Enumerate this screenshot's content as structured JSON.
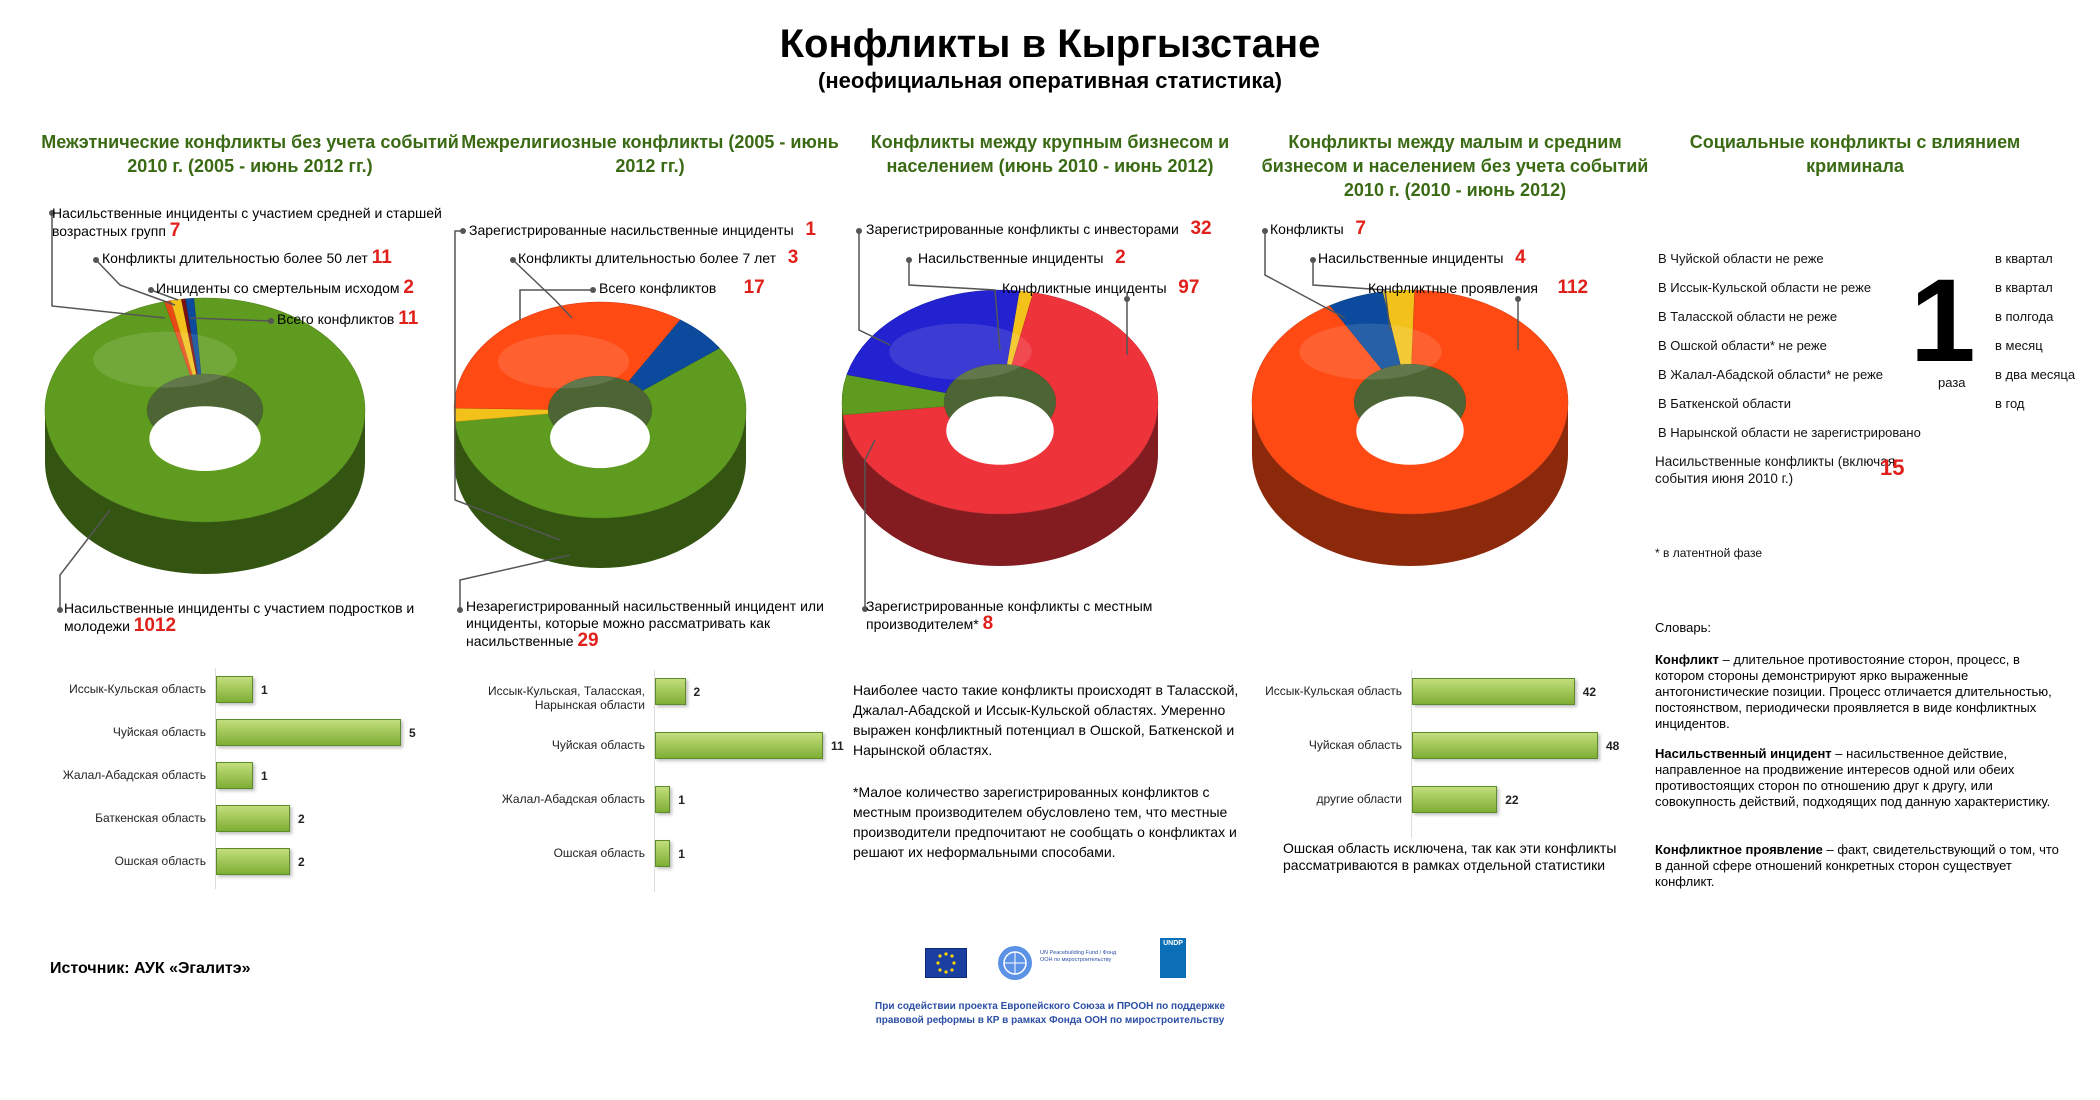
{
  "title": "Конфликты в Кыргызстане",
  "subtitle": "(неофициальная оперативная статистика)",
  "colors": {
    "green": "#5f9b1e",
    "red": "#ff4a14",
    "crimson": "#ef333a",
    "blue": "#0b4a9c",
    "royal": "#2222d0",
    "yellow": "#f2c21a",
    "header": "#3a6a14",
    "accent": "#e0201a"
  },
  "chart_data": [
    {
      "type": "pie",
      "title": "Межэтнические конфликты без учета событий 2010 г. (2005 - июнь 2012 гг.)",
      "slices": [
        {
          "label": "Насильственные инциденты с участием подростков и молодежи",
          "value": 1012,
          "color": "#5f9b1e"
        },
        {
          "label": "Насильственные инциденты с участием средней и старшей возрастных групп",
          "value": 7,
          "color": "#e84a16"
        },
        {
          "label": "Конфликты длительностью более 50 лет",
          "value": 11,
          "color": "#f2c21a"
        },
        {
          "label": "Инциденты со смертельным исходом",
          "value": 2,
          "color": "#7a1010"
        },
        {
          "label": "Всего конфликтов",
          "value": 11,
          "color": "#0b4a9c"
        }
      ],
      "annotations": [
        {
          "label": "Насильственные инциденты с участием средней и старшей возрастных групп",
          "value": "7"
        },
        {
          "label": "Конфликты длительностью более 50 лет",
          "value": "11"
        },
        {
          "label": "Инциденты со смертельным исходом",
          "value": "2"
        },
        {
          "label": "Всего конфликтов",
          "value": "11"
        },
        {
          "label": "Насильственные инциденты с участием подростков и молодежи",
          "value": "1012"
        }
      ],
      "bars": {
        "type": "bar",
        "categories": [
          "Иссык-Кульская область",
          "Чуйская область",
          "Жалал-Абадская область",
          "Баткенская область",
          "Ошская область"
        ],
        "values": [
          1,
          5,
          1,
          2,
          2
        ]
      }
    },
    {
      "type": "pie",
      "title": "Межрелигиозные конфликты (2005 - июнь 2012 гг.)",
      "slices": [
        {
          "label": "Незарегистрированный насильственный инцидент или инциденты, которые можно рассматривать как насильственные",
          "value": 29,
          "color": "#5f9b1e"
        },
        {
          "label": "Зарегистрированные насильственные инциденты",
          "value": 1,
          "color": "#f2c21a"
        },
        {
          "label": "Всего конфликтов",
          "value": 17,
          "color": "#ff4a14"
        },
        {
          "label": "Конфликты длительностью более 7 лет",
          "value": 3,
          "color": "#0b4a9c"
        }
      ],
      "annotations": [
        {
          "label": "Зарегистрированные насильственные инциденты",
          "value": "1"
        },
        {
          "label": "Конфликты длительностью более 7 лет",
          "value": "3"
        },
        {
          "label": "Всего конфликтов",
          "value": "17"
        },
        {
          "label": "Незарегистрированный насильственный инцидент или инциденты, которые можно рассматривать как насильственные",
          "value": "29"
        }
      ],
      "bars": {
        "type": "bar",
        "categories": [
          "Иссык-Кульская, Таласская, Нарынская области",
          "Чуйская область",
          "Жалал-Абадская область",
          "Ошская область"
        ],
        "values": [
          2,
          11,
          1,
          1
        ]
      }
    },
    {
      "type": "pie",
      "title": "Конфликты между крупным бизнесом и населением (июнь 2010 - июнь 2012)",
      "slices": [
        {
          "label": "Насильственные инциденты",
          "value": 2,
          "color": "#f2c21a"
        },
        {
          "label": "Конфликтные инциденты",
          "value": 97,
          "color": "#ef333a"
        },
        {
          "label": "Зарегистрированные конфликты с местным производителем*",
          "value": 8,
          "color": "#5f9b1e"
        },
        {
          "label": "Зарегистрированные конфликты с инвесторами",
          "value": 32,
          "color": "#2222d0"
        }
      ],
      "annotations": [
        {
          "label": "Зарегистрированные конфликты с инвесторами",
          "value": "32"
        },
        {
          "label": "Насильственные инциденты",
          "value": "2"
        },
        {
          "label": "Конфликтные инциденты",
          "value": "97"
        },
        {
          "label": "Зарегистрированные конфликты с местным производителем*",
          "value": "8"
        }
      ]
    },
    {
      "type": "pie",
      "title": "Конфликты между малым и средним бизнесом и населением без учета событий 2010 г. (2010 - июнь 2012)",
      "slices": [
        {
          "label": "Насильственные инциденты",
          "value": 4,
          "color": "#f2c21a"
        },
        {
          "label": "Конфликтные проявления",
          "value": 112,
          "color": "#ff4a14"
        },
        {
          "label": "Конфликты",
          "value": 7,
          "color": "#0b4a9c"
        }
      ],
      "annotations": [
        {
          "label": "Конфликты",
          "value": "7"
        },
        {
          "label": "Насильственные инциденты",
          "value": "4"
        },
        {
          "label": "Конфликтные проявления",
          "value": "112"
        }
      ],
      "bars": {
        "type": "bar",
        "categories": [
          "Иссык-Кульская область",
          "Чуйская область",
          "другие области"
        ],
        "values": [
          42,
          48,
          22
        ]
      }
    }
  ],
  "col3_text": {
    "p1": "Наиболее часто такие конфликты происходят в Таласской, Джалал-Абадской и Иссык-Кульской областях. Умеренно выражен конфликтный потенциал в Ошской, Баткенской и Нарынской областях.",
    "p2": "*Малое количество зарегистрированных конфликтов с местным производителем обусловлено тем, что местные производители предпочитают не сообщать о конфликтах и решают их неформальными способами."
  },
  "col4_note": "Ошская область исключена, так как эти конфликты рассматриваются в рамках отдельной статистики",
  "social": {
    "title": "Социальные конфликты с влиянием криминала",
    "rows": [
      {
        "region": "В Чуйской области не реже",
        "freq": "в квартал"
      },
      {
        "region": "В Иссык-Кульской области не реже",
        "freq": "в квартал"
      },
      {
        "region": "В Таласской области не реже",
        "freq": "в полгода"
      },
      {
        "region": "В Ошской области* не реже",
        "freq": "в месяц"
      },
      {
        "region": "В Жалал-Абадской области* не реже",
        "freq": "в два месяца"
      },
      {
        "region": "В Баткенской области",
        "freq": "в год"
      },
      {
        "region": "В Нарынской области не зарегистрировано",
        "freq": ""
      }
    ],
    "big_number": "1",
    "big_unit": "раза",
    "violent_label": "Насильственные конфликты (включая события июня 2010 г.)",
    "violent_value": "15",
    "footnote": "* в латентной фазе"
  },
  "glossary": {
    "heading": "Словарь:",
    "entries": [
      {
        "term": "Конфликт",
        "def": " – длительное противостояние сторон, процесс, в котором стороны демонстрируют ярко выраженные антогонистические позиции. Процесс отличается длительностью, постоянством, периодически проявляется в виде конфликтных инцидентов."
      },
      {
        "term": "Насильственный инцидент",
        "def": " – насильственное действие, направленное на продвижение интересов одной или обеих противостоящих сторон по отношению друг к другу, или совокупность действий, подходящих под данную характеристику."
      },
      {
        "term": "Конфликтное проявление",
        "def": " – факт, свидетельствующий о том, что в данной сфере отношений конкретных сторон существует конфликт."
      }
    ]
  },
  "source": "Источник: АУК «Эгалитэ»",
  "footer": {
    "caption1": "При содействии проекта Европейского Союза и ПРООН по поддержке",
    "caption2": "правовой реформы в КР в рамках Фонда ООН по миростроительству",
    "logo_un_text": "UN Peacebuilding Fund / Фонд ООН по миростроительству",
    "logo_undp_text": "UNDP"
  }
}
